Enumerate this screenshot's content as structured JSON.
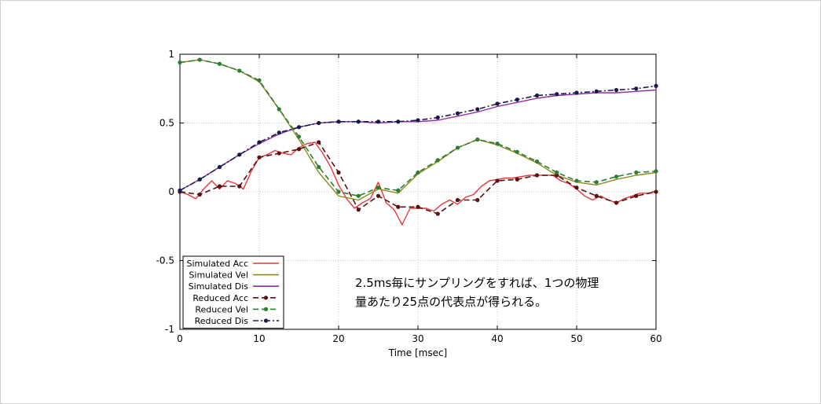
{
  "chart_data": {
    "type": "line",
    "xlabel": "Time [msec]",
    "ylabel": "",
    "xlim": [
      0,
      60
    ],
    "ylim": [
      -1,
      1
    ],
    "xticks": [
      "0",
      "10",
      "20",
      "30",
      "40",
      "50",
      "60"
    ],
    "yticks": [
      "1",
      "0.5",
      "0",
      "-0.5",
      "-1"
    ],
    "grid": true,
    "legend_position": "bottom-left",
    "annotation": [
      "2.5ms毎にサンプリングをすれば、1つの物理",
      "量あたり25点の代表点が得られる。"
    ],
    "series": [
      {
        "name": "Simulated Acc",
        "color": "#e8383d",
        "style": "solid",
        "marker": false,
        "x": [
          0,
          1,
          2,
          3,
          4,
          5,
          6,
          7,
          8,
          9,
          10,
          11,
          12,
          13,
          14,
          15,
          16,
          17,
          18,
          19,
          20,
          21,
          22,
          23,
          24,
          25,
          26,
          27,
          28,
          29,
          30,
          31,
          32,
          33,
          34,
          35,
          36,
          37,
          38,
          39,
          40,
          41,
          42,
          43,
          44,
          45,
          46,
          47,
          48,
          49,
          50,
          51,
          52,
          53,
          54,
          55,
          56,
          57,
          58,
          59,
          60
        ],
        "values": [
          0,
          -0.02,
          -0.05,
          0.02,
          0.08,
          0.02,
          0.08,
          0.06,
          0.02,
          0.15,
          0.25,
          0.27,
          0.3,
          0.28,
          0.27,
          0.32,
          0.35,
          0.36,
          0.28,
          0.18,
          0.05,
          -0.05,
          -0.12,
          -0.08,
          -0.05,
          0.07,
          -0.08,
          -0.13,
          -0.24,
          -0.12,
          -0.12,
          -0.12,
          -0.14,
          -0.09,
          -0.06,
          -0.09,
          -0.04,
          -0.02,
          0.04,
          0.08,
          0.09,
          0.1,
          0.1,
          0.11,
          0.12,
          0.12,
          0.12,
          0.12,
          0.08,
          0.06,
          0.02,
          -0.03,
          -0.06,
          -0.03,
          -0.06,
          -0.08,
          -0.05,
          -0.03,
          -0.01,
          -0.01,
          0
        ]
      },
      {
        "name": "Simulated Vel",
        "color": "#8a8a1e",
        "style": "solid",
        "marker": false,
        "x": [
          0,
          2.5,
          5,
          7.5,
          10,
          12.5,
          15,
          17.5,
          20,
          22.5,
          25,
          27.5,
          30,
          32.5,
          35,
          37.5,
          40,
          42.5,
          45,
          47.5,
          50,
          52.5,
          55,
          57.5,
          60
        ],
        "values": [
          0.94,
          0.96,
          0.93,
          0.88,
          0.8,
          0.6,
          0.38,
          0.14,
          -0.03,
          -0.06,
          0.02,
          -0.01,
          0.13,
          0.22,
          0.32,
          0.38,
          0.34,
          0.28,
          0.21,
          0.12,
          0.07,
          0.05,
          0.09,
          0.12,
          0.14
        ]
      },
      {
        "name": "Simulated Dis",
        "color": "#8e2fa3",
        "style": "solid",
        "marker": false,
        "x": [
          0,
          2.5,
          5,
          7.5,
          10,
          12.5,
          15,
          17.5,
          20,
          22.5,
          25,
          27.5,
          30,
          32.5,
          35,
          37.5,
          40,
          42.5,
          45,
          47.5,
          50,
          52.5,
          55,
          57.5,
          60
        ],
        "values": [
          0.01,
          0.09,
          0.18,
          0.27,
          0.35,
          0.42,
          0.47,
          0.5,
          0.51,
          0.51,
          0.5,
          0.51,
          0.51,
          0.52,
          0.55,
          0.58,
          0.62,
          0.65,
          0.68,
          0.7,
          0.71,
          0.72,
          0.72,
          0.73,
          0.74
        ]
      },
      {
        "name": "Reduced Acc",
        "color": "#5a1010",
        "style": "dashed",
        "marker": true,
        "x": [
          0,
          2.5,
          5,
          7.5,
          10,
          12.5,
          15,
          17.5,
          20,
          22.5,
          25,
          27.5,
          30,
          32.5,
          35,
          37.5,
          40,
          42.5,
          45,
          47.5,
          50,
          52.5,
          55,
          57.5,
          60
        ],
        "values": [
          0,
          -0.02,
          0.04,
          0.04,
          0.25,
          0.28,
          0.31,
          0.36,
          0.14,
          -0.13,
          -0.03,
          -0.11,
          -0.11,
          -0.16,
          -0.06,
          -0.06,
          0.08,
          0.09,
          0.12,
          0.12,
          0.03,
          -0.03,
          -0.08,
          -0.03,
          0
        ]
      },
      {
        "name": "Reduced Vel",
        "color": "#2e7d32",
        "style": "dashed",
        "marker": true,
        "x": [
          0,
          2.5,
          5,
          7.5,
          10,
          12.5,
          15,
          17.5,
          20,
          22.5,
          25,
          27.5,
          30,
          32.5,
          35,
          37.5,
          40,
          42.5,
          45,
          47.5,
          50,
          52.5,
          55,
          57.5,
          60
        ],
        "values": [
          0.94,
          0.96,
          0.93,
          0.88,
          0.81,
          0.6,
          0.4,
          0.18,
          0,
          -0.03,
          0.03,
          0.01,
          0.14,
          0.23,
          0.32,
          0.38,
          0.35,
          0.29,
          0.22,
          0.14,
          0.08,
          0.07,
          0.11,
          0.14,
          0.15
        ]
      },
      {
        "name": "Reduced Dis",
        "color": "#1a1a4a",
        "style": "dashdot",
        "marker": true,
        "x": [
          0,
          2.5,
          5,
          7.5,
          10,
          12.5,
          15,
          17.5,
          20,
          22.5,
          25,
          27.5,
          30,
          32.5,
          35,
          37.5,
          40,
          42.5,
          45,
          47.5,
          50,
          52.5,
          55,
          57.5,
          60
        ],
        "values": [
          0.01,
          0.09,
          0.18,
          0.27,
          0.36,
          0.43,
          0.47,
          0.5,
          0.51,
          0.51,
          0.51,
          0.51,
          0.52,
          0.54,
          0.57,
          0.6,
          0.64,
          0.67,
          0.7,
          0.71,
          0.72,
          0.73,
          0.74,
          0.75,
          0.77
        ]
      }
    ]
  }
}
